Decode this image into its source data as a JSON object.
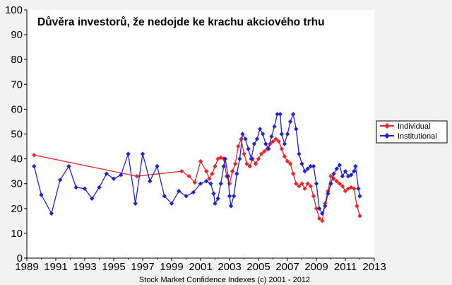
{
  "colors": {
    "background": "#f2f2f2",
    "plot_background": "#ffffff",
    "individual": "#e8262b",
    "institutional": "#1f24c8",
    "axis": "#000000"
  },
  "chart_data": {
    "type": "line",
    "title": "Důvěra investorů, že nedojde ke krachu akciového trhu",
    "caption": "Stock Market Confidence Indexes (c) 2001 - 2012",
    "xlabel": "",
    "ylabel": "",
    "xlim": [
      1989,
      2013
    ],
    "ylim": [
      0,
      100
    ],
    "x_ticks": [
      1989,
      1991,
      1993,
      1995,
      1997,
      1999,
      2001,
      2003,
      2005,
      2007,
      2009,
      2011,
      2013
    ],
    "x_tick_labels": [
      "1989",
      "1991",
      "1993",
      "1995",
      "1997",
      "1999",
      "2001",
      "2003",
      "2005",
      "2007",
      "2009",
      "2011",
      "2013"
    ],
    "y_ticks": [
      0,
      10,
      20,
      30,
      40,
      50,
      60,
      70,
      80,
      90,
      100
    ],
    "y_tick_labels": [
      "0",
      "10",
      "20",
      "30",
      "40",
      "50",
      "60",
      "70",
      "80",
      "90",
      "100"
    ],
    "grid": false,
    "legend_position": "right",
    "series": [
      {
        "name": "Individual",
        "color": "#e8262b",
        "marker": "diamond",
        "points": [
          [
            1989.5,
            41.5
          ],
          [
            1996.6,
            33.0
          ],
          [
            1999.7,
            35.0
          ],
          [
            2000.2,
            33.0
          ],
          [
            2000.6,
            30.5
          ],
          [
            2001.0,
            39.0
          ],
          [
            2001.4,
            35.0
          ],
          [
            2001.6,
            32.0
          ],
          [
            2001.8,
            34.0
          ],
          [
            2002.0,
            37.0
          ],
          [
            2002.2,
            40.0
          ],
          [
            2002.4,
            40.5
          ],
          [
            2002.6,
            40.0
          ],
          [
            2002.8,
            33.0
          ],
          [
            2003.0,
            30.0
          ],
          [
            2003.2,
            35.0
          ],
          [
            2003.4,
            38.0
          ],
          [
            2003.6,
            45.0
          ],
          [
            2003.8,
            48.0
          ],
          [
            2004.0,
            42.0
          ],
          [
            2004.2,
            38.0
          ],
          [
            2004.4,
            37.0
          ],
          [
            2004.6,
            40.0
          ],
          [
            2004.8,
            38.0
          ],
          [
            2005.0,
            40.0
          ],
          [
            2005.2,
            42.0
          ],
          [
            2005.4,
            43.0
          ],
          [
            2005.6,
            44.0
          ],
          [
            2005.8,
            46.0
          ],
          [
            2006.0,
            47.0
          ],
          [
            2006.2,
            48.0
          ],
          [
            2006.4,
            47.0
          ],
          [
            2006.6,
            44.0
          ],
          [
            2006.8,
            41.0
          ],
          [
            2007.0,
            39.0
          ],
          [
            2007.2,
            38.0
          ],
          [
            2007.4,
            34.0
          ],
          [
            2007.6,
            30.0
          ],
          [
            2007.8,
            29.0
          ],
          [
            2008.0,
            30.0
          ],
          [
            2008.2,
            28.0
          ],
          [
            2008.4,
            30.0
          ],
          [
            2008.6,
            29.0
          ],
          [
            2008.8,
            25.0
          ],
          [
            2009.0,
            20.0
          ],
          [
            2009.2,
            16.0
          ],
          [
            2009.4,
            15.0
          ],
          [
            2009.6,
            22.0
          ],
          [
            2009.8,
            27.0
          ],
          [
            2010.0,
            33.0
          ],
          [
            2010.2,
            32.0
          ],
          [
            2010.4,
            31.0
          ],
          [
            2010.6,
            30.0
          ],
          [
            2010.8,
            29.0
          ],
          [
            2011.0,
            27.0
          ],
          [
            2011.2,
            28.0
          ],
          [
            2011.4,
            28.5
          ],
          [
            2011.6,
            28.0
          ],
          [
            2011.8,
            21.0
          ],
          [
            2012.0,
            17.0
          ]
        ]
      },
      {
        "name": "Institutional",
        "color": "#1f24c8",
        "marker": "diamond",
        "points": [
          [
            1989.5,
            37.0
          ],
          [
            1990.0,
            25.5
          ],
          [
            1990.7,
            18.0
          ],
          [
            1991.3,
            31.5
          ],
          [
            1991.9,
            37.0
          ],
          [
            1992.4,
            28.5
          ],
          [
            1993.0,
            28.0
          ],
          [
            1993.5,
            24.0
          ],
          [
            1994.0,
            28.5
          ],
          [
            1994.5,
            34.0
          ],
          [
            1995.0,
            32.0
          ],
          [
            1995.5,
            33.5
          ],
          [
            1996.0,
            42.0
          ],
          [
            1996.5,
            22.0
          ],
          [
            1997.0,
            42.0
          ],
          [
            1997.5,
            31.0
          ],
          [
            1998.0,
            37.0
          ],
          [
            1998.5,
            25.0
          ],
          [
            1999.0,
            22.0
          ],
          [
            1999.5,
            27.0
          ],
          [
            2000.0,
            25.0
          ],
          [
            2000.5,
            26.5
          ],
          [
            2001.0,
            30.0
          ],
          [
            2001.4,
            31.0
          ],
          [
            2001.7,
            30.0
          ],
          [
            2001.9,
            26.0
          ],
          [
            2002.0,
            22.0
          ],
          [
            2002.2,
            24.0
          ],
          [
            2002.4,
            30.0
          ],
          [
            2002.6,
            37.0
          ],
          [
            2002.7,
            40.0
          ],
          [
            2002.9,
            33.0
          ],
          [
            2003.0,
            25.0
          ],
          [
            2003.1,
            21.0
          ],
          [
            2003.3,
            25.0
          ],
          [
            2003.5,
            34.0
          ],
          [
            2003.7,
            40.0
          ],
          [
            2003.9,
            50.0
          ],
          [
            2004.1,
            48.0
          ],
          [
            2004.3,
            44.0
          ],
          [
            2004.5,
            40.0
          ],
          [
            2004.7,
            46.0
          ],
          [
            2004.9,
            48.0
          ],
          [
            2005.1,
            52.0
          ],
          [
            2005.3,
            50.0
          ],
          [
            2005.5,
            46.0
          ],
          [
            2005.7,
            44.0
          ],
          [
            2005.9,
            49.0
          ],
          [
            2006.1,
            53.0
          ],
          [
            2006.3,
            58.0
          ],
          [
            2006.5,
            58.0
          ],
          [
            2006.6,
            50.0
          ],
          [
            2006.8,
            46.0
          ],
          [
            2007.0,
            50.0
          ],
          [
            2007.2,
            55.0
          ],
          [
            2007.4,
            58.0
          ],
          [
            2007.6,
            52.0
          ],
          [
            2007.8,
            42.0
          ],
          [
            2008.0,
            38.0
          ],
          [
            2008.2,
            35.0
          ],
          [
            2008.4,
            36.0
          ],
          [
            2008.6,
            37.0
          ],
          [
            2008.8,
            37.0
          ],
          [
            2009.0,
            30.0
          ],
          [
            2009.2,
            20.0
          ],
          [
            2009.4,
            18.0
          ],
          [
            2009.6,
            21.0
          ],
          [
            2009.8,
            26.0
          ],
          [
            2010.0,
            30.0
          ],
          [
            2010.2,
            34.0
          ],
          [
            2010.4,
            36.0
          ],
          [
            2010.6,
            37.5
          ],
          [
            2010.8,
            33.0
          ],
          [
            2011.0,
            35.0
          ],
          [
            2011.2,
            33.0
          ],
          [
            2011.4,
            33.5
          ],
          [
            2011.6,
            35.0
          ],
          [
            2011.7,
            37.0
          ],
          [
            2011.9,
            28.0
          ],
          [
            2012.0,
            25.0
          ]
        ]
      }
    ]
  }
}
